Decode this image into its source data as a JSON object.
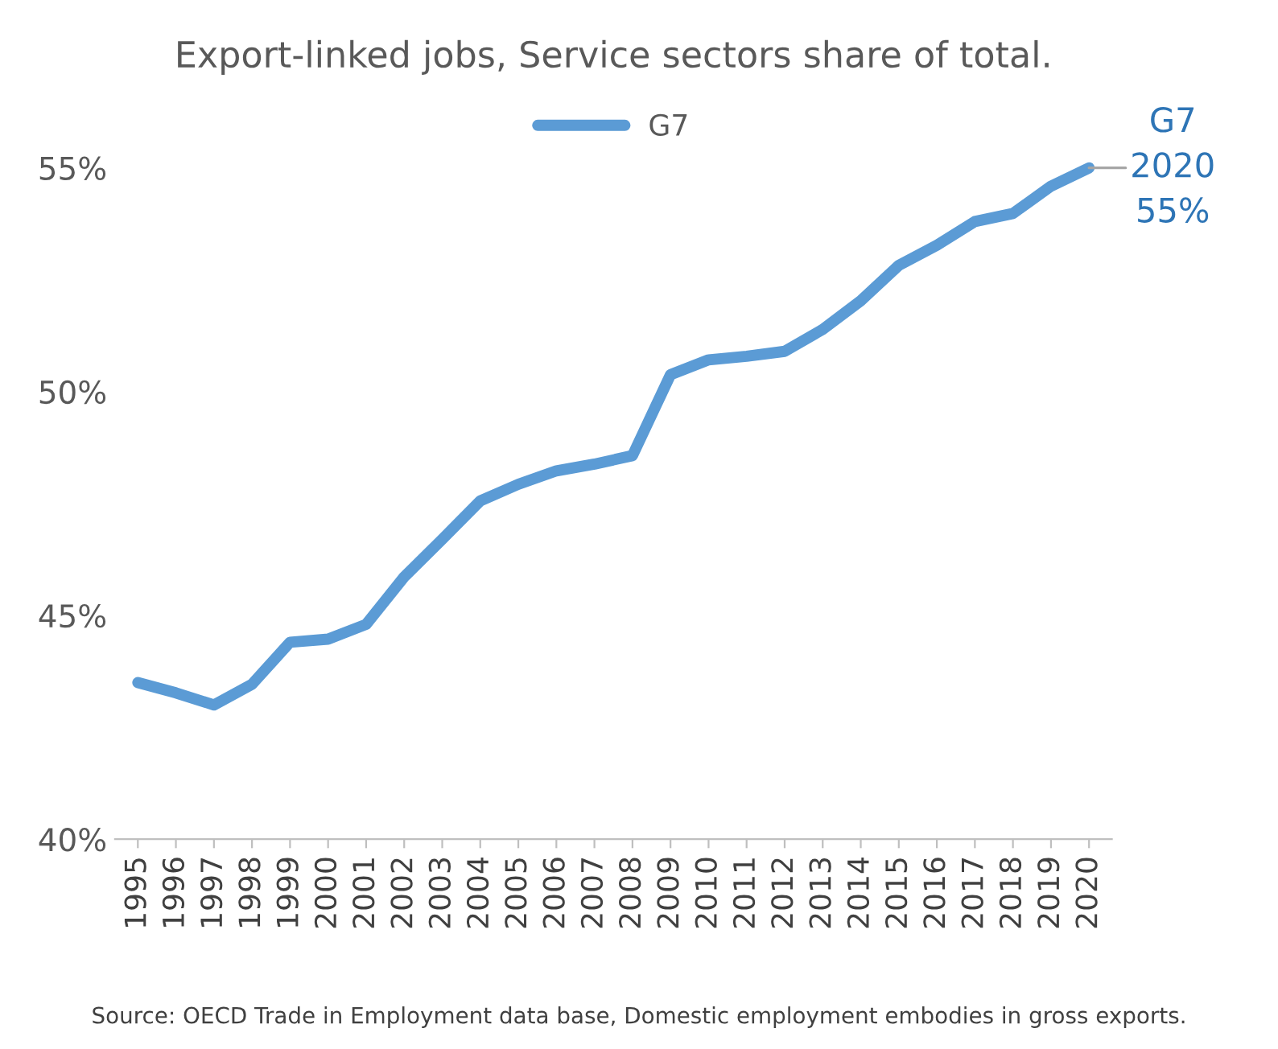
{
  "chart_data": {
    "type": "line",
    "title": "Export-linked jobs, Service sectors share of total.",
    "categories": [
      "1995",
      "1996",
      "1997",
      "1998",
      "1999",
      "2000",
      "2001",
      "2002",
      "2003",
      "2004",
      "2005",
      "2006",
      "2007",
      "2008",
      "2009",
      "2010",
      "2011",
      "2012",
      "2013",
      "2014",
      "2015",
      "2016",
      "2017",
      "2018",
      "2019",
      "2020"
    ],
    "series": [
      {
        "name": "G7",
        "color": "#5b9bd5",
        "values": [
          43.5,
          43.27,
          43.0,
          43.46,
          44.4,
          44.47,
          44.8,
          45.86,
          46.7,
          47.56,
          47.93,
          48.23,
          48.38,
          48.57,
          50.38,
          50.71,
          50.79,
          50.9,
          51.39,
          52.03,
          52.82,
          53.27,
          53.8,
          53.98,
          54.59,
          55.0
        ]
      }
    ],
    "ylim": [
      40,
      55
    ],
    "yticks": [
      {
        "value": 40,
        "label": "40%"
      },
      {
        "value": 45,
        "label": "45%"
      },
      {
        "value": 50,
        "label": "50%"
      },
      {
        "value": 55,
        "label": "55%"
      }
    ],
    "grid": false,
    "legend": "top",
    "marker": "none",
    "line_style": "solid",
    "annotations": [
      {
        "text": "G7\n2020\n55%",
        "x": "2020",
        "y": 55
      },
      "Source: OECD Trade in Employment data base, Domestic employment embodies in gross exports."
    ]
  }
}
